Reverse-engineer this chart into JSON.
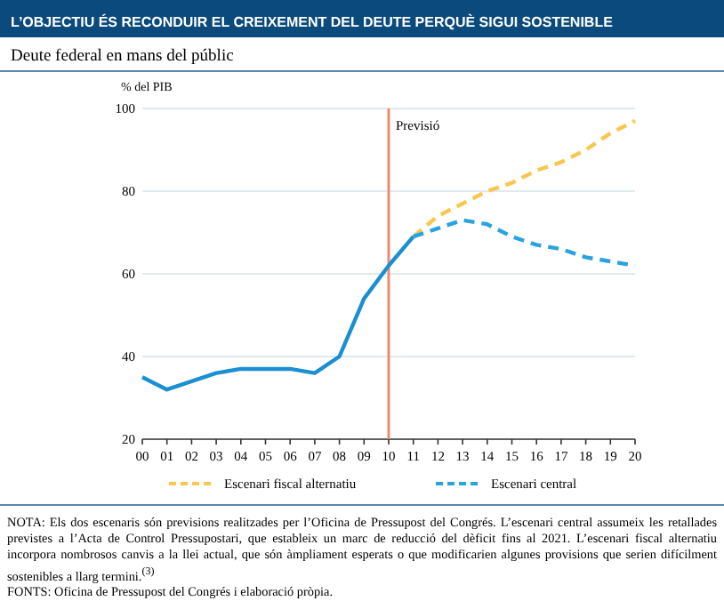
{
  "chart_data": {
    "type": "line",
    "title": "L’OBJECTIU ÉS RECONDUIR EL CREIXEMENT DEL DEUTE PERQUÈ SIGUI SOSTENIBLE",
    "subtitle": "Deute federal en mans del públic",
    "ylabel": "% del PIB",
    "categories": [
      "00",
      "01",
      "02",
      "03",
      "04",
      "05",
      "06",
      "07",
      "08",
      "09",
      "10",
      "11",
      "12",
      "13",
      "14",
      "15",
      "16",
      "17",
      "18",
      "19",
      "20"
    ],
    "series": [
      {
        "color": "#1b8fd2",
        "line_style": "solid",
        "values": [
          35,
          32,
          34,
          36,
          37,
          37,
          37,
          36,
          40,
          54,
          62,
          69,
          null,
          null,
          null,
          null,
          null,
          null,
          null,
          null,
          null
        ]
      },
      {
        "name": "Escenari fiscal alternatiu",
        "color": "#f9c74f",
        "line_style": "dashed",
        "values": [
          null,
          null,
          null,
          null,
          null,
          null,
          null,
          null,
          null,
          null,
          null,
          69,
          74,
          77,
          80,
          82,
          85,
          87,
          90,
          94,
          97
        ]
      },
      {
        "name": "Escenari central",
        "color": "#29a3e0",
        "line_style": "dashed",
        "values": [
          null,
          null,
          null,
          null,
          null,
          null,
          null,
          null,
          null,
          null,
          null,
          69,
          71,
          73,
          72,
          69,
          67,
          66,
          64,
          63,
          62
        ]
      }
    ],
    "ylim": [
      20,
      100
    ],
    "yticks": [
      20,
      40,
      60,
      80,
      100
    ],
    "grid": "y",
    "legend": "bottom",
    "ref_lines": [
      {
        "axis": "x",
        "value": "10",
        "label": "Previsió",
        "color": "#ef8a70"
      }
    ],
    "annotations": [
      "NOTA: Els dos escenaris són previsions realitzades per l’Oficina de Pressupost del Congrés. L’escenari central assumeix les retallades previstes a l’Acta de Control Pressupostari, que estableix un marc de reducció del dèficit fins al 2021. L’escenari fiscal alternatiu incorpora nombrosos canvis a la llei actual, que són àmpliament esperats o que modificarien algunes provisions que serien difícilment sostenibles a llarg termini.$^{(3)}$",
      "FONTS: Oficina de Pressupost del Congrés i elaboració pròpia."
    ]
  }
}
